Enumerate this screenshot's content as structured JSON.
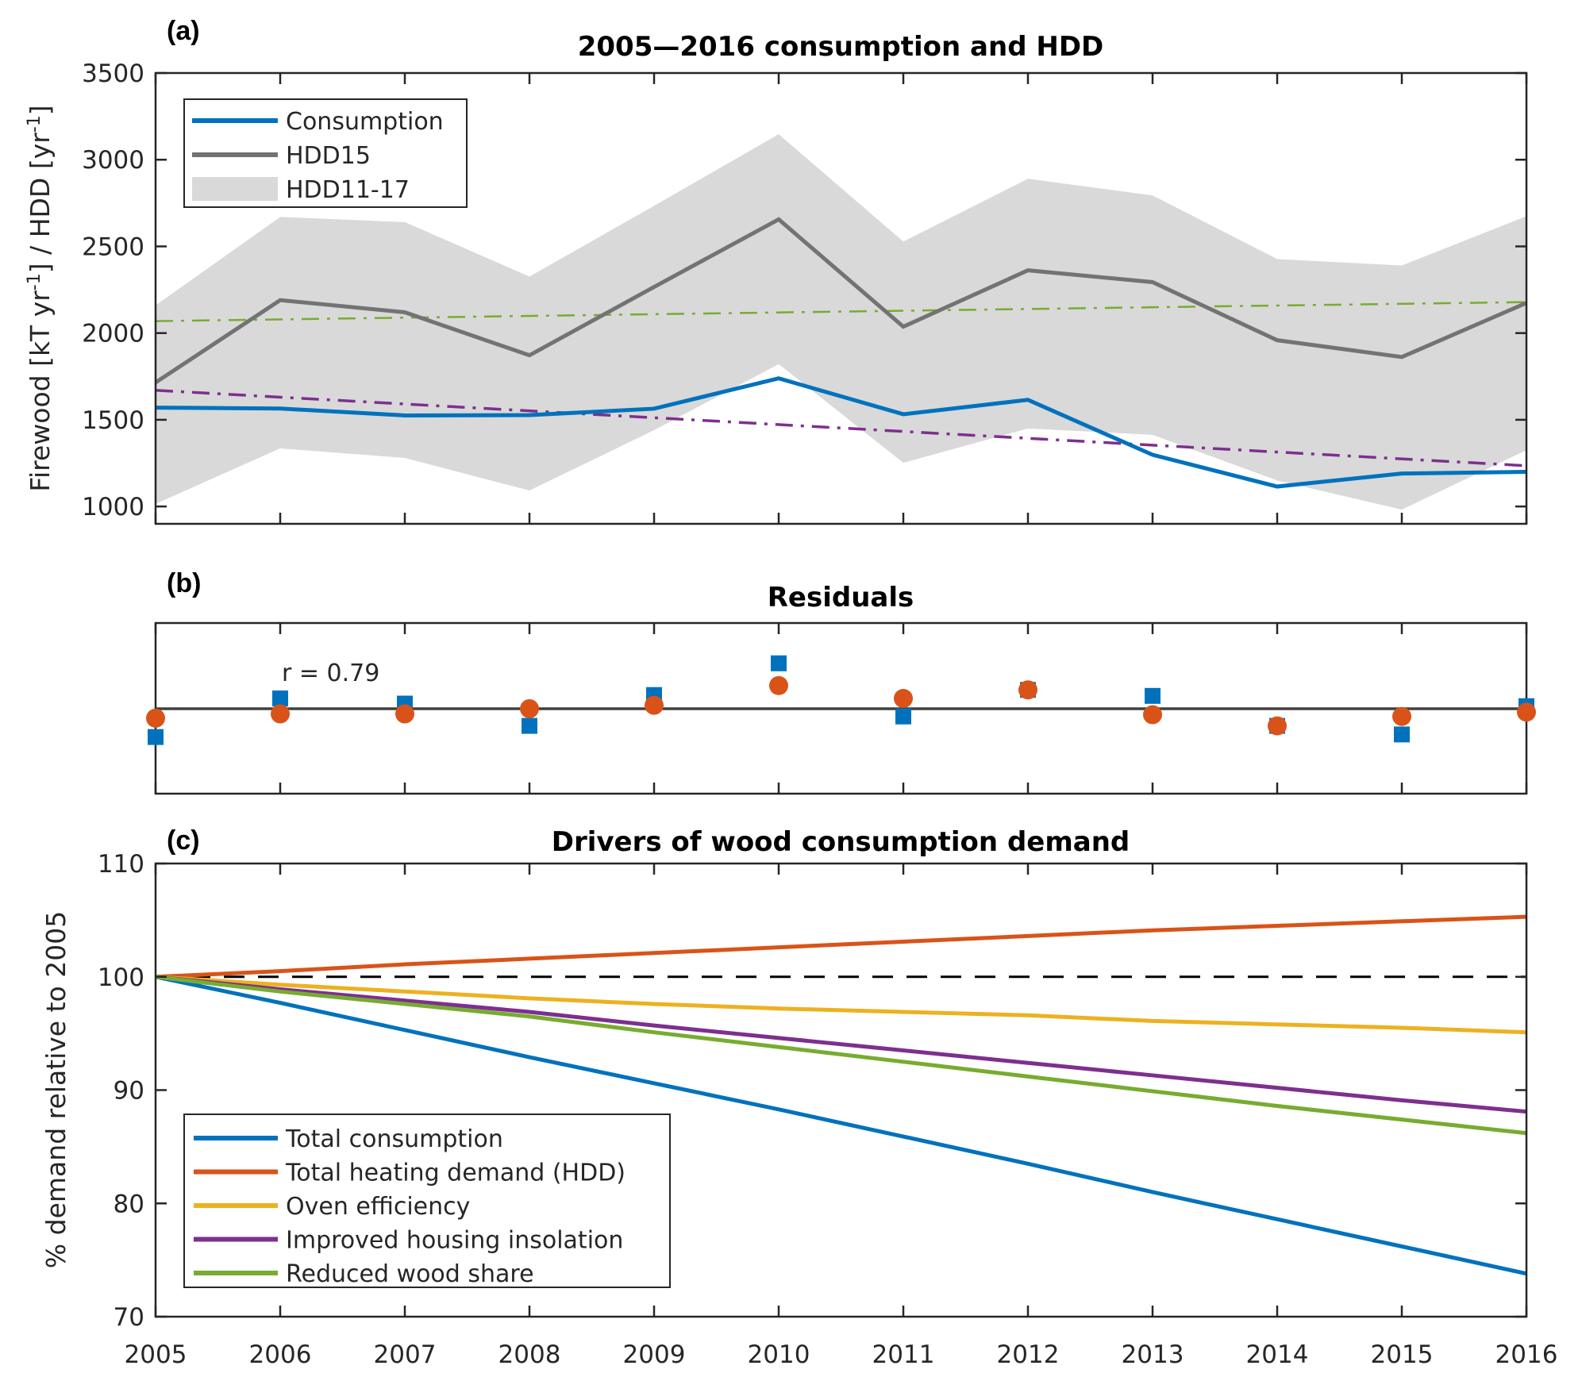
{
  "chart_data": [
    {
      "panel": "(a)",
      "type": "line",
      "title": "2005—2016 consumption and HDD",
      "ylabel": "Firewood [kT yr⁻¹] / HDD [yr⁻¹]",
      "ylabel_parts": [
        "Firewood [kT yr",
        "-1",
        "] / HDD [yr",
        "-1",
        "]"
      ],
      "xlabel": "",
      "x": [
        2005,
        2006,
        2007,
        2008,
        2009,
        2010,
        2011,
        2012,
        2013,
        2014,
        2015,
        2016
      ],
      "xlim": [
        2005,
        2016
      ],
      "ylim": [
        900,
        3500
      ],
      "yticks": [
        1000,
        1500,
        2000,
        2500,
        3000,
        3500
      ],
      "grid": false,
      "legend_position": "top-left",
      "series": [
        {
          "name": "Consumption",
          "color": "#0072BD",
          "style": "solid",
          "values": [
            1570,
            1565,
            1525,
            1527,
            1564,
            1739,
            1532,
            1615,
            1298,
            1115,
            1190,
            1200
          ]
        },
        {
          "name": "HDD15",
          "color": "#737373",
          "style": "solid",
          "values": [
            1715,
            2190,
            2120,
            1872,
            2266,
            2656,
            2037,
            2362,
            2294,
            1959,
            1862,
            2174
          ]
        },
        {
          "name": "HDD11-17",
          "color": "#d9d9d9",
          "style": "band",
          "upper": [
            2160,
            2670,
            2640,
            2326,
            2734,
            3147,
            2528,
            2890,
            2794,
            2427,
            2390,
            2674
          ],
          "lower": [
            1015,
            1335,
            1280,
            1092,
            1440,
            1821,
            1252,
            1450,
            1413,
            1150,
            982,
            1325
          ]
        },
        {
          "name": "HDD15 trend",
          "color": "#77AC30",
          "style": "dashdot",
          "in_legend": false,
          "values": [
            2069,
            2179
          ]
        },
        {
          "name": "Consumption trend",
          "color": "#7E2F8E",
          "style": "dashdot",
          "in_legend": false,
          "values": [
            1670,
            1235
          ]
        }
      ]
    },
    {
      "panel": "(b)",
      "type": "scatter",
      "title": "Residuals",
      "xlabel": "",
      "ylabel": "",
      "x": [
        2005,
        2006,
        2007,
        2008,
        2009,
        2010,
        2011,
        2012,
        2013,
        2014,
        2015,
        2016
      ],
      "xlim": [
        2005,
        2016
      ],
      "ylim": [
        -1,
        1
      ],
      "annotation": "r = 0.79",
      "reference_line": 0,
      "series": [
        {
          "name": "Consumption residual",
          "marker": "square",
          "color": "#0072BD",
          "values": [
            -0.33,
            0.12,
            0.06,
            -0.2,
            0.16,
            0.53,
            -0.09,
            0.22,
            0.15,
            -0.2,
            -0.3,
            0.03
          ]
        },
        {
          "name": "HDD residual",
          "marker": "circle",
          "color": "#D95319",
          "values": [
            -0.11,
            -0.06,
            -0.06,
            0.0,
            0.04,
            0.27,
            0.12,
            0.22,
            -0.07,
            -0.2,
            -0.09,
            -0.04
          ]
        }
      ]
    },
    {
      "panel": "(c)",
      "type": "line",
      "title": "Drivers of wood consumption demand",
      "ylabel": "% demand relative to 2005",
      "xlabel": "",
      "x": [
        2005,
        2006,
        2007,
        2008,
        2009,
        2010,
        2011,
        2012,
        2013,
        2014,
        2015,
        2016
      ],
      "xticks": [
        "2005",
        "2006",
        "2007",
        "2008",
        "2009",
        "2010",
        "2011",
        "2012",
        "2013",
        "2014",
        "2015",
        "2016"
      ],
      "xlim": [
        2005,
        2016
      ],
      "ylim": [
        70,
        110
      ],
      "yticks": [
        70,
        80,
        90,
        100,
        110
      ],
      "grid": false,
      "legend_position": "bottom-left",
      "reference_line": 100,
      "series": [
        {
          "name": "Total consumption",
          "color": "#0072BD",
          "values": [
            100,
            97.7,
            95.3,
            92.9,
            90.6,
            88.3,
            85.9,
            83.5,
            81.0,
            78.6,
            76.2,
            73.8
          ]
        },
        {
          "name": "Total heating demand (HDD)",
          "color": "#D95319",
          "values": [
            100,
            100.5,
            101.1,
            101.6,
            102.1,
            102.6,
            103.1,
            103.6,
            104.1,
            104.5,
            104.9,
            105.3
          ]
        },
        {
          "name": "Oven efficiency",
          "color": "#EDB120",
          "values": [
            100,
            99.3,
            98.7,
            98.1,
            97.6,
            97.2,
            96.9,
            96.6,
            96.1,
            95.8,
            95.5,
            95.1
          ]
        },
        {
          "name": "Improved housing insolation",
          "color": "#7E2F8E",
          "values": [
            100,
            98.9,
            97.9,
            96.9,
            95.7,
            94.6,
            93.5,
            92.4,
            91.3,
            90.2,
            89.1,
            88.1
          ]
        },
        {
          "name": "Reduced wood share",
          "color": "#77AC30",
          "values": [
            100,
            98.7,
            97.6,
            96.5,
            95.1,
            93.8,
            92.5,
            91.2,
            89.9,
            88.6,
            87.4,
            86.2
          ]
        }
      ]
    }
  ],
  "labels": {
    "panel_a": "(a)",
    "panel_b": "(b)",
    "panel_c": "(c)"
  }
}
